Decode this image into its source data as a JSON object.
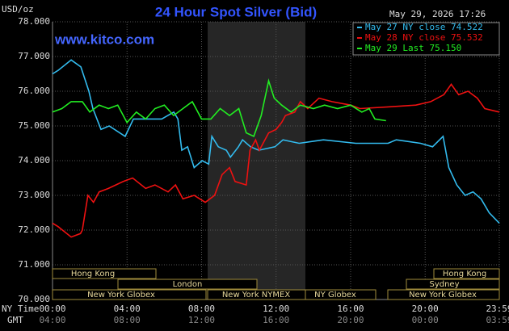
{
  "chart_data": {
    "type": "line",
    "title": "24 Hour Spot Silver (Bid)",
    "unit": "USD/oz",
    "timestamp": "May 29, 2026 17:26",
    "watermark": "www.kitco.com",
    "x_row_labels": [
      "NY Time",
      "GMT"
    ],
    "xlim": [
      0,
      23.98
    ],
    "xticks": [
      {
        "value": 0,
        "label": "00:00"
      },
      {
        "value": 4,
        "label": "04:00"
      },
      {
        "value": 8,
        "label": "08:00"
      },
      {
        "value": 12,
        "label": "12:00"
      },
      {
        "value": 16,
        "label": "16:00"
      },
      {
        "value": 20,
        "label": "20:00"
      },
      {
        "value": 23.98,
        "label": "23:59"
      }
    ],
    "gmt_tick_labels": [
      "04:00",
      "08:00",
      "12:00",
      "16:00",
      "20:00",
      "00:00",
      "03:59"
    ],
    "ylim": [
      70,
      78
    ],
    "yticks": [
      {
        "value": 70,
        "label": "70.000"
      },
      {
        "value": 71,
        "label": "71.000"
      },
      {
        "value": 72,
        "label": "72.000"
      },
      {
        "value": 73,
        "label": "73.000"
      },
      {
        "value": 74,
        "label": "74.000"
      },
      {
        "value": 75,
        "label": "75.000"
      },
      {
        "value": 76,
        "label": "76.000"
      },
      {
        "value": 77,
        "label": "77.000"
      },
      {
        "value": 78,
        "label": "78.000"
      }
    ],
    "grid": true,
    "legend": "top-right",
    "sessions": [
      "Hong Kong",
      "London",
      "New York Globex",
      "New York NYMEX",
      "NY Globex",
      "Hong Kong",
      "Sydney",
      "New York Globex"
    ],
    "series": [
      {
        "name": "May 27 NY close 74.522",
        "color": "#33bbee",
        "x": [
          0,
          0.3,
          1.0,
          1.52,
          1.95,
          2.17,
          2.6,
          3.04,
          3.9,
          4.34,
          5.86,
          6.51,
          6.73,
          6.94,
          7.25,
          7.6,
          8.03,
          8.38,
          8.55,
          8.9,
          9.33,
          9.55,
          9.98,
          10.2,
          10.63,
          11.07,
          11.94,
          12.37,
          13.24,
          14.54,
          16.28,
          18.01,
          18.45,
          19.75,
          20.4,
          20.96,
          21.27,
          21.7,
          22.14,
          22.57,
          23.0,
          23.44,
          23.98
        ],
        "values": [
          76.5,
          76.6,
          76.9,
          76.7,
          76.0,
          75.5,
          74.9,
          75.0,
          74.7,
          75.2,
          75.2,
          75.4,
          75.2,
          74.3,
          74.4,
          73.8,
          74.0,
          73.9,
          74.7,
          74.4,
          74.3,
          74.1,
          74.4,
          74.6,
          74.4,
          74.3,
          74.4,
          74.6,
          74.5,
          74.6,
          74.5,
          74.5,
          74.6,
          74.5,
          74.4,
          74.7,
          73.8,
          73.3,
          73.0,
          73.1,
          72.9,
          72.5,
          72.2
        ]
      },
      {
        "name": "May 28 NY close 75.532",
        "color": "#ee1111",
        "x": [
          0,
          0.3,
          1.0,
          1.5,
          1.6,
          1.9,
          2.2,
          2.5,
          3.0,
          3.8,
          4.3,
          5.0,
          5.5,
          6.2,
          6.6,
          7.0,
          7.6,
          8.2,
          8.7,
          9.1,
          9.5,
          9.8,
          10.4,
          10.6,
          10.9,
          11.1,
          11.6,
          12.0,
          12.3,
          12.5,
          13.0,
          13.3,
          13.7,
          14.3,
          15.0,
          16.0,
          16.5,
          18.0,
          19.5,
          20.3,
          21.0,
          21.4,
          21.8,
          22.3,
          22.8,
          23.2,
          23.98
        ],
        "values": [
          72.2,
          72.1,
          71.8,
          71.9,
          72.0,
          73.0,
          72.8,
          73.1,
          73.2,
          73.4,
          73.5,
          73.2,
          73.3,
          73.1,
          73.3,
          72.9,
          73.0,
          72.8,
          73.0,
          73.6,
          73.8,
          73.4,
          73.3,
          74.3,
          74.6,
          74.3,
          74.8,
          74.9,
          75.1,
          75.3,
          75.4,
          75.7,
          75.5,
          75.8,
          75.7,
          75.6,
          75.5,
          75.55,
          75.6,
          75.7,
          75.9,
          76.2,
          75.9,
          76.0,
          75.8,
          75.5,
          75.4
        ]
      },
      {
        "name": "May 29 Last 75.150",
        "color": "#22ee22",
        "x": [
          0,
          0.5,
          1.0,
          1.6,
          2.0,
          2.5,
          3.0,
          3.5,
          4.0,
          4.5,
          5.0,
          5.5,
          6.0,
          6.5,
          7.0,
          7.5,
          8.0,
          8.5,
          9.0,
          9.5,
          10.0,
          10.4,
          10.8,
          11.2,
          11.6,
          11.9,
          12.3,
          12.8,
          13.3,
          14.0,
          14.6,
          15.3,
          16.0,
          16.6,
          17.0,
          17.3,
          17.9
        ],
        "values": [
          75.4,
          75.5,
          75.7,
          75.7,
          75.4,
          75.6,
          75.5,
          75.6,
          75.1,
          75.4,
          75.2,
          75.5,
          75.6,
          75.3,
          75.5,
          75.7,
          75.2,
          75.2,
          75.5,
          75.3,
          75.5,
          74.8,
          74.7,
          75.3,
          76.3,
          75.8,
          75.6,
          75.4,
          75.6,
          75.5,
          75.6,
          75.5,
          75.6,
          75.4,
          75.5,
          75.2,
          75.15
        ]
      }
    ]
  }
}
